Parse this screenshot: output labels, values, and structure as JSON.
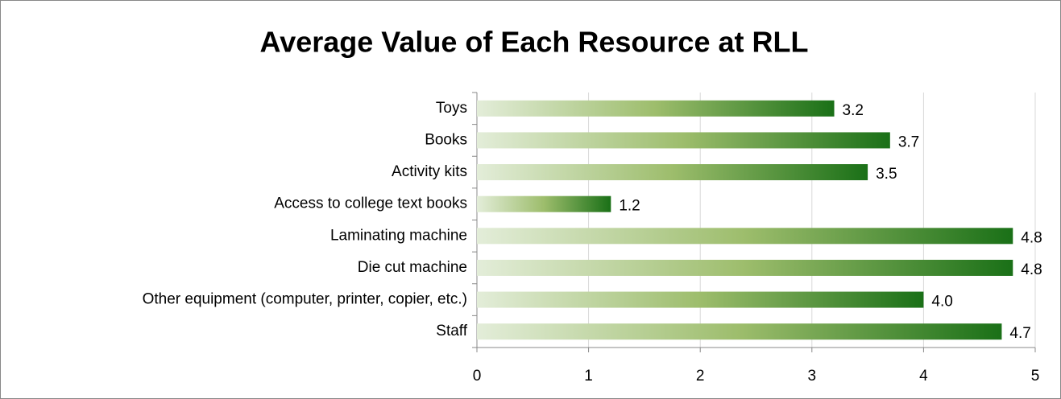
{
  "chart_data": {
    "type": "bar",
    "title": "Average Value of Each Resource at RLL",
    "categories": [
      "Toys",
      "Books",
      "Activity kits",
      "Access to college text books",
      "Laminating machine",
      "Die cut machine",
      "Other equipment (computer, printer, copier, etc.)",
      "Staff"
    ],
    "values": [
      3.2,
      3.7,
      3.5,
      1.2,
      4.8,
      4.8,
      4.0,
      4.7
    ],
    "value_labels": [
      "3.2",
      "3.7",
      "3.5",
      "1.2",
      "4.8",
      "4.8",
      "4.0",
      "4.7"
    ],
    "color": "#1a7017",
    "xlim": [
      0,
      5
    ],
    "xticks": [
      0,
      1,
      2,
      3,
      4,
      5
    ],
    "grid": true
  }
}
